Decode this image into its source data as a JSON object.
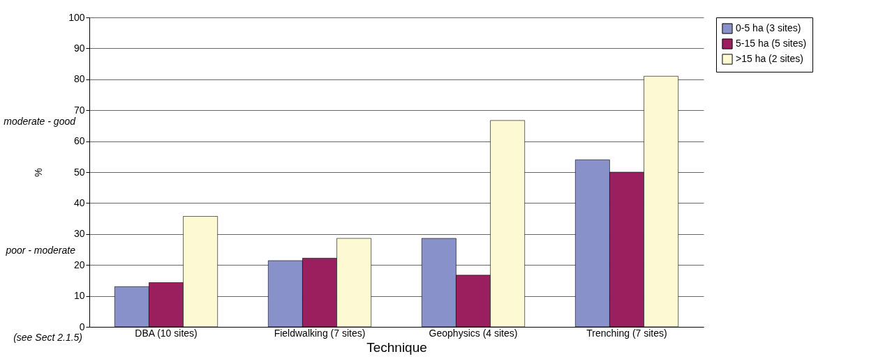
{
  "chart_data": {
    "type": "bar",
    "xlabel": "Technique",
    "ylabel": "%",
    "categories": [
      "DBA (10  sites)",
      "Fieldwalking (7 sites)",
      "Geophysics (4 sites)",
      "Trenching (7 sites)"
    ],
    "series": [
      {
        "name": "0-5 ha (3 sites)",
        "color": "#8891c9",
        "values": [
          13,
          21.4,
          28.6,
          54
        ]
      },
      {
        "name": "5-15 ha (5 sites)",
        "color": "#9b1f5e",
        "values": [
          14.3,
          22.2,
          16.7,
          50
        ]
      },
      {
        "name": ">15 ha (2 sites)",
        "color": "#fdf9d3",
        "values": [
          35.7,
          28.6,
          66.7,
          81
        ]
      }
    ],
    "ylim": [
      0,
      100
    ],
    "yticks": [
      0,
      10,
      20,
      30,
      40,
      50,
      60,
      70,
      80,
      90,
      100
    ],
    "grid": "y",
    "legend": "right",
    "annotations": [
      "moderate - good",
      "poor - moderate",
      "(see Sect 2.1.5)"
    ]
  }
}
